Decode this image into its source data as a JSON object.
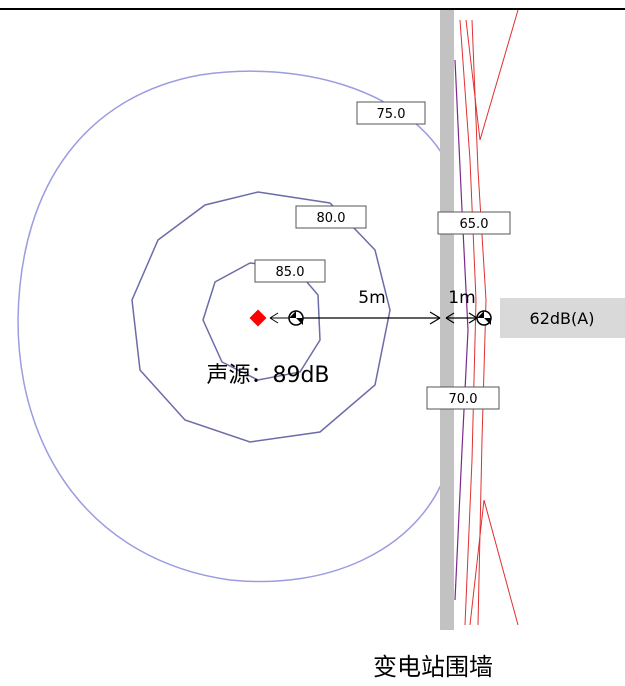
{
  "contour_labels": [
    "75.0",
    "80.0",
    "85.0",
    "65.0",
    "70.0"
  ],
  "distance_source_to_wall": "5m",
  "distance_wall_to_receiver": "1m",
  "receiver_level": "62dB(A)",
  "source_label": "声源：89dB",
  "wall_label": "变电站围墙",
  "colors": {
    "contour": "#9c9ce0",
    "inner_contour": "#6c6ca8",
    "wall": "#c2c2c2",
    "source_marker": "#ff0000",
    "red_line": "#e03030",
    "purple_line": "#7a2a8a",
    "receiver_box": "#d9d9d9"
  },
  "icons": [
    "source-diamond-icon",
    "receiver-circle-icon"
  ]
}
